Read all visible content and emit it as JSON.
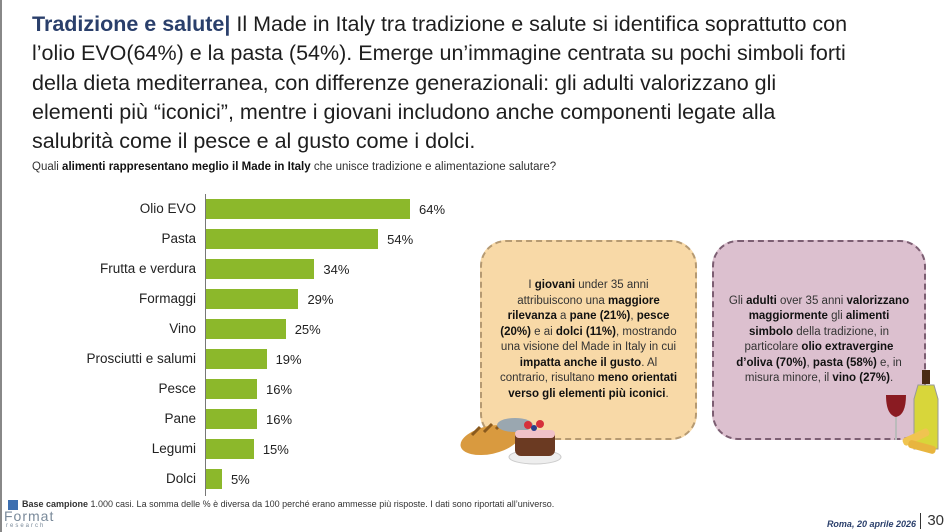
{
  "header": {
    "title": "Tradizione e salute",
    "separator": "|",
    "lines": [
      " Il Made in Italy tra tradizione e salute si identifica soprattutto con",
      "l’olio EVO(64%) e la pasta (54%). Emerge un’immagine centrata su pochi simboli forti",
      "della dieta mediterranea, con differenze generazionali: gli adulti valorizzano gli",
      "elementi più “iconici”, mentre i giovani includono anche componenti legate alla",
      "salubrità come il pesce e al gusto come i dolci."
    ]
  },
  "question": [
    {
      "t": "Quali ",
      "b": false
    },
    {
      "t": "alimenti rappresentano meglio il Made in Italy",
      "b": true
    },
    {
      "t": " che unisce tradizione e alimentazione salutare?",
      "b": false
    }
  ],
  "chart_data": {
    "type": "bar",
    "orientation": "horizontal",
    "title": "Quali alimenti rappresentano meglio il Made in Italy che unisce tradizione e alimentazione salutare?",
    "categories": [
      "Olio EVO",
      "Pasta",
      "Frutta e verdura",
      "Formaggi",
      "Vino",
      "Prosciutti e salumi",
      "Pesce",
      "Pane",
      "Legumi",
      "Dolci"
    ],
    "values": [
      64,
      54,
      34,
      29,
      25,
      19,
      16,
      16,
      15,
      5
    ],
    "labels": [
      "64%",
      "54%",
      "34%",
      "29%",
      "25%",
      "19%",
      "16%",
      "16%",
      "15%",
      "5%"
    ],
    "unit": "%",
    "xlim": [
      0,
      64
    ],
    "bar_color": "#8cb82b",
    "grid": false
  },
  "box_young": [
    {
      "t": "I ",
      "b": false
    },
    {
      "t": "giovani",
      "b": true
    },
    {
      "t": " under 35 anni attribuiscono una ",
      "b": false
    },
    {
      "t": "maggiore rilevanza",
      "b": true
    },
    {
      "t": " a ",
      "b": false
    },
    {
      "t": "pane (21%)",
      "b": true
    },
    {
      "t": ", ",
      "b": false
    },
    {
      "t": "pesce (20%)",
      "b": true
    },
    {
      "t": " e ai ",
      "b": false
    },
    {
      "t": "dolci (11%)",
      "b": true
    },
    {
      "t": ", mostrando una visione del Made in Italy in cui ",
      "b": false
    },
    {
      "t": "impatta anche il gusto",
      "b": true
    },
    {
      "t": ". Al contrario, risultano ",
      "b": false
    },
    {
      "t": "meno orientati verso gli elementi più iconici",
      "b": true
    },
    {
      "t": ".",
      "b": false
    }
  ],
  "box_adults": [
    {
      "t": "Gli ",
      "b": false
    },
    {
      "t": "adulti",
      "b": true
    },
    {
      "t": " over 35 anni ",
      "b": false
    },
    {
      "t": "valorizzano maggiormente",
      "b": true
    },
    {
      "t": " gli ",
      "b": false
    },
    {
      "t": "alimenti simbolo",
      "b": true
    },
    {
      "t": " della tradizione, in particolare ",
      "b": false
    },
    {
      "t": "olio extravergine d’oliva (70%)",
      "b": true
    },
    {
      "t": ", ",
      "b": false
    },
    {
      "t": "pasta (58%)",
      "b": true
    },
    {
      "t": " e, in misura minore, il ",
      "b": false
    },
    {
      "t": "vino (27%)",
      "b": true
    },
    {
      "t": ".",
      "b": false
    }
  ],
  "footer": {
    "note_bold": "Base campione",
    "note": " 1.000 casi. La somma delle % è diversa da 100 perché erano ammesse più risposte. I dati sono riportati all’universo.",
    "logo": "Format",
    "logo_sub": "research",
    "date": "Roma, 20 aprile 2026",
    "page": "30"
  }
}
